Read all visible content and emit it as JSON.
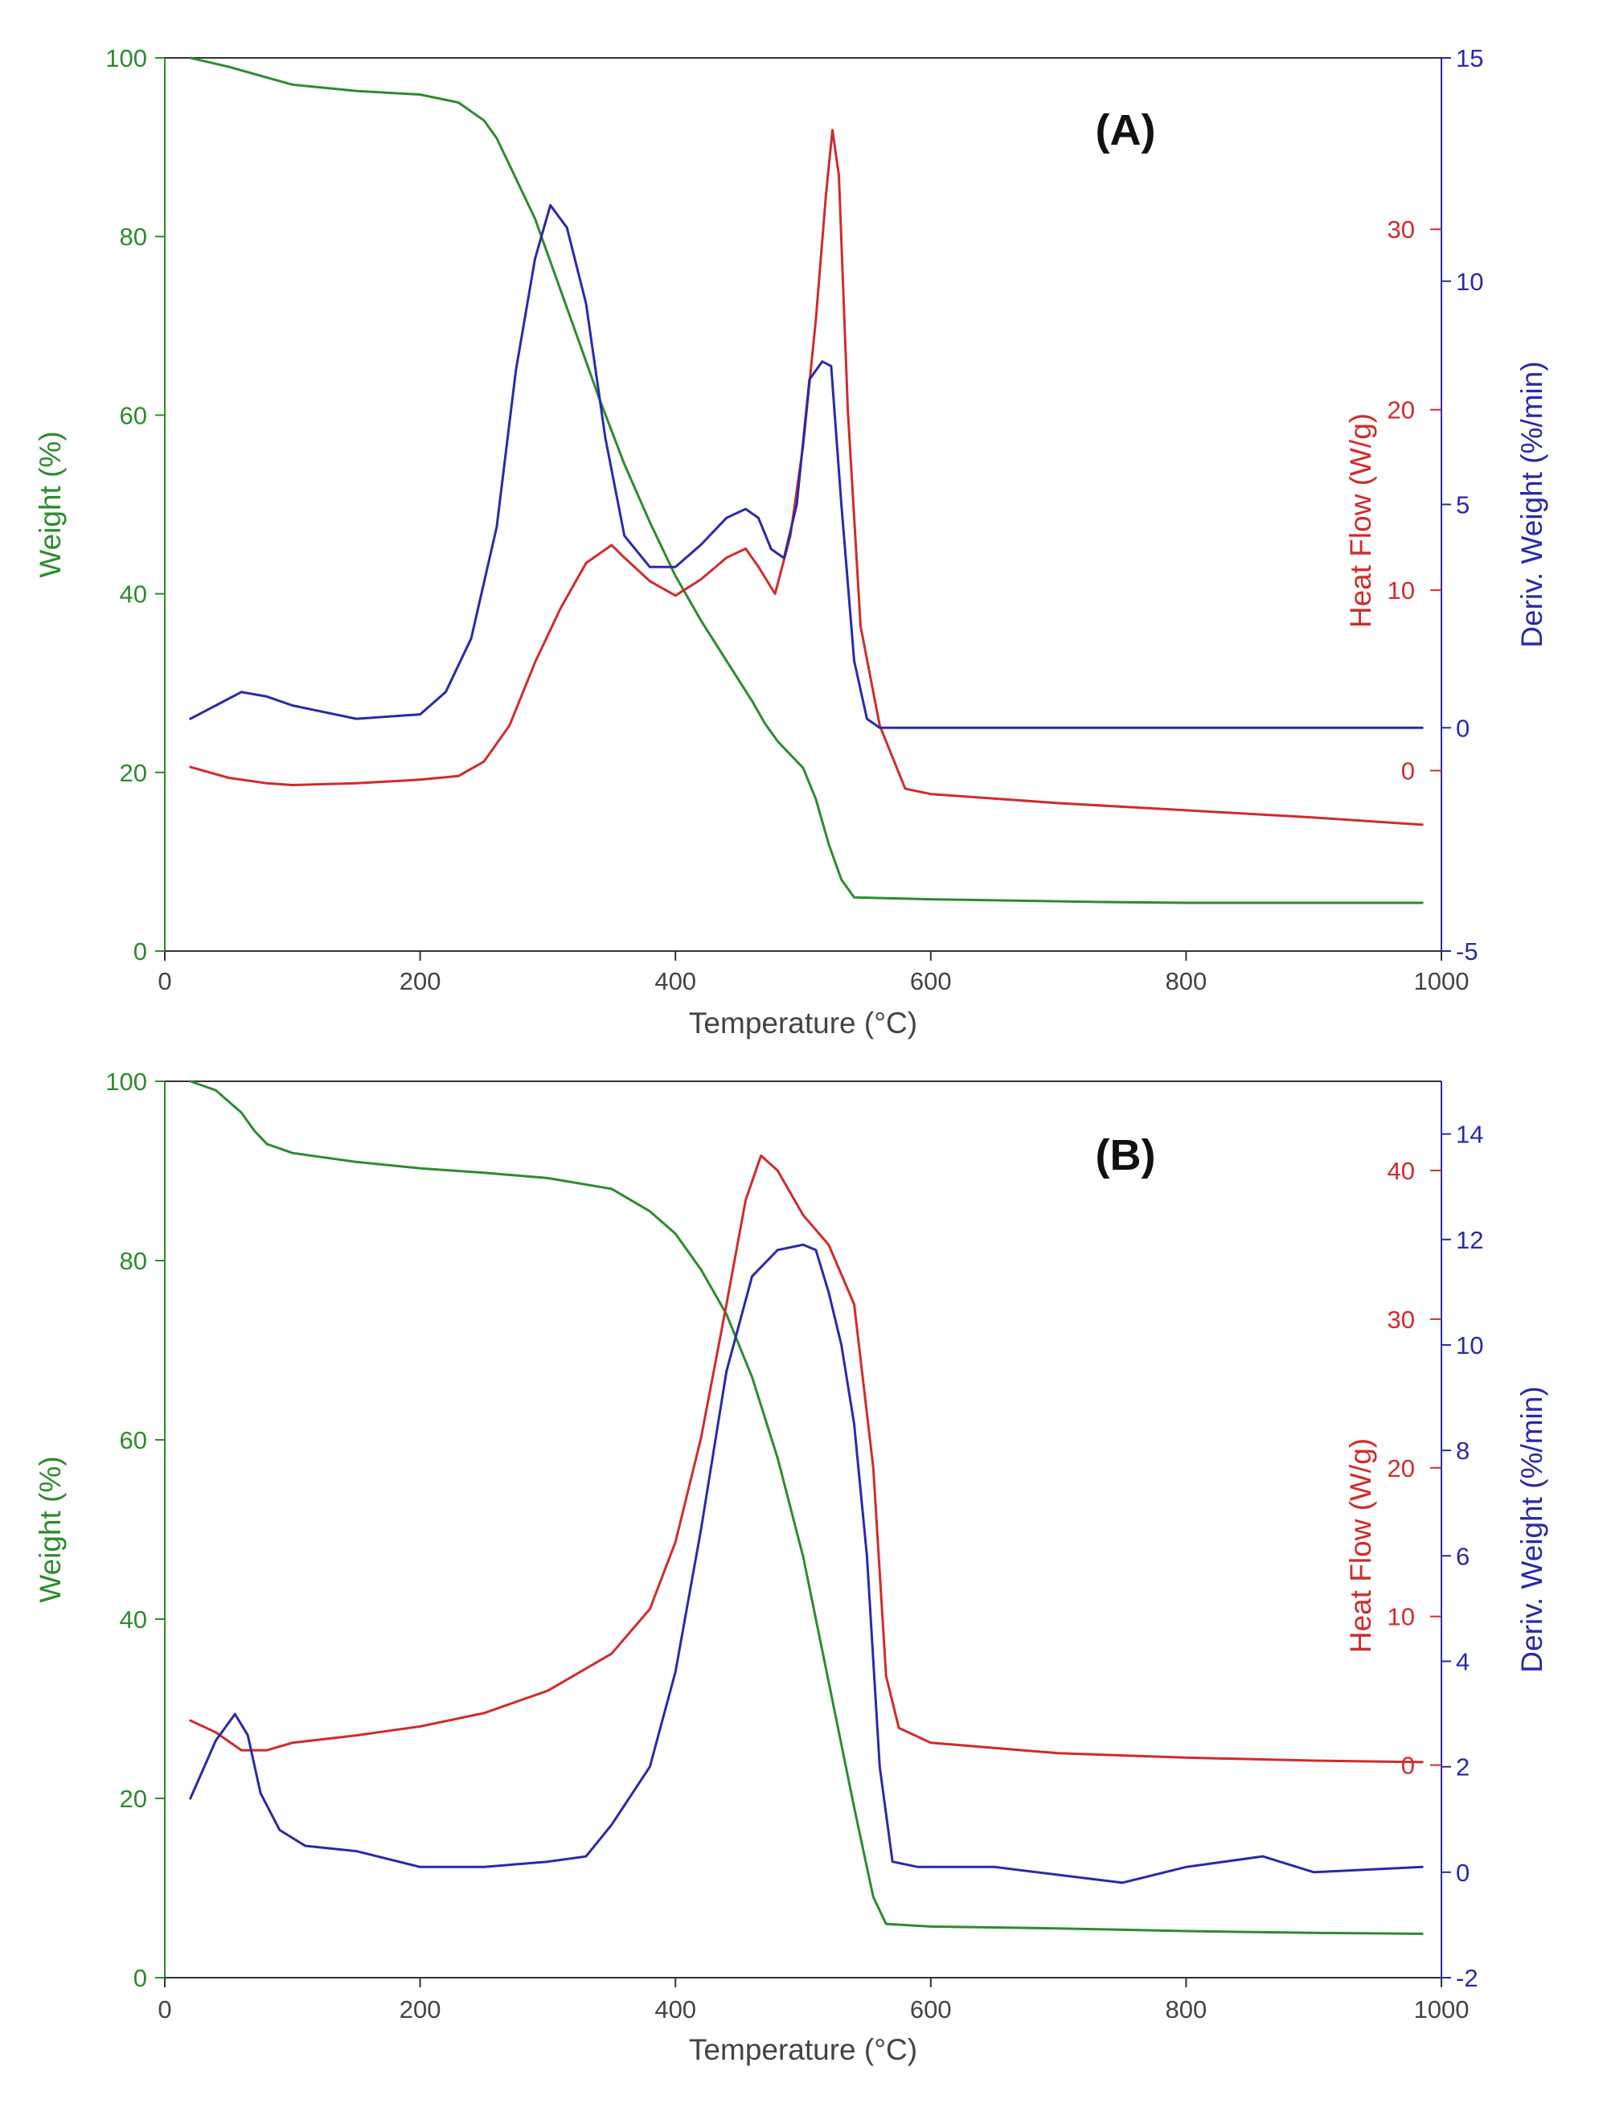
{
  "colors": {
    "weight": "#2e8b2e",
    "heat_flow": "#d12b2b",
    "deriv_weight": "#2a2aa8",
    "axis": "#333333"
  },
  "chart_data": [
    {
      "type": "line",
      "panel_label": "(A)",
      "xlabel": "Temperature (°C)",
      "xlim": [
        0,
        1000
      ],
      "xticks": [
        0,
        200,
        400,
        600,
        800,
        1000
      ],
      "axes": {
        "weight": {
          "label": "Weight (%)",
          "lim": [
            0,
            100
          ],
          "ticks": [
            0,
            20,
            40,
            60,
            80,
            100
          ],
          "side": "left",
          "color": "#2e8b2e"
        },
        "heat_flow": {
          "label": "Heat Flow (W/g)",
          "lim": [
            -10,
            39.5
          ],
          "ticks": [
            0,
            10,
            20,
            30
          ],
          "side": "right-inner",
          "color": "#d12b2b"
        },
        "deriv_weight": {
          "label": "Deriv. Weight (%/min)",
          "lim": [
            -5,
            15
          ],
          "ticks": [
            -5,
            0,
            5,
            10,
            15
          ],
          "side": "right",
          "color": "#2a2aa8"
        }
      },
      "series": [
        {
          "name": "Weight",
          "axis": "weight",
          "x": [
            20,
            50,
            80,
            100,
            150,
            200,
            230,
            250,
            260,
            270,
            280,
            290,
            300,
            320,
            340,
            360,
            380,
            400,
            420,
            440,
            460,
            470,
            480,
            490,
            500,
            510,
            520,
            530,
            540,
            600,
            730,
            800,
            900,
            985
          ],
          "y": [
            100,
            99,
            97.8,
            97,
            96.3,
            95.9,
            95,
            93,
            91,
            88,
            85,
            82,
            78,
            70,
            62,
            54.5,
            48,
            42,
            37,
            32.5,
            28,
            25.5,
            23.5,
            22,
            20.5,
            17,
            12,
            8,
            6,
            5.8,
            5.5,
            5.4,
            5.4,
            5.4
          ]
        },
        {
          "name": "Heat Flow",
          "axis": "heat_flow",
          "x": [
            20,
            50,
            80,
            100,
            150,
            200,
            230,
            250,
            270,
            290,
            310,
            330,
            350,
            360,
            380,
            400,
            420,
            440,
            455,
            465,
            478,
            490,
            500,
            510,
            518,
            523,
            528,
            535,
            545,
            560,
            580,
            600,
            700,
            800,
            900,
            985
          ],
          "y": [
            0.2,
            -0.4,
            -0.7,
            -0.8,
            -0.7,
            -0.5,
            -0.3,
            0.5,
            2.5,
            6,
            9,
            11.5,
            12.5,
            11.8,
            10.5,
            9.7,
            10.6,
            11.8,
            12.3,
            11.3,
            9.8,
            13,
            18,
            25,
            32,
            35.5,
            33,
            20,
            8,
            2.5,
            -1,
            -1.3,
            -1.8,
            -2.2,
            -2.6,
            -3
          ]
        },
        {
          "name": "Deriv. Weight",
          "axis": "deriv_weight",
          "x": [
            20,
            40,
            60,
            80,
            100,
            150,
            200,
            220,
            240,
            260,
            275,
            290,
            302,
            315,
            330,
            345,
            360,
            380,
            400,
            420,
            440,
            455,
            465,
            475,
            485,
            495,
            505,
            515,
            522,
            530,
            540,
            550,
            560,
            600,
            700,
            800,
            900,
            985
          ],
          "y": [
            0.2,
            0.5,
            0.8,
            0.7,
            0.5,
            0.2,
            0.3,
            0.8,
            2,
            4.5,
            8,
            10.5,
            11.7,
            11.2,
            9.5,
            6.5,
            4.3,
            3.6,
            3.6,
            4.1,
            4.7,
            4.9,
            4.7,
            4,
            3.8,
            5,
            7.8,
            8.2,
            8.1,
            5,
            1.5,
            0.2,
            0,
            0,
            0,
            0,
            0,
            0
          ]
        }
      ]
    },
    {
      "type": "line",
      "panel_label": "(B)",
      "xlabel": "Temperature (°C)",
      "xlim": [
        0,
        1000
      ],
      "xticks": [
        0,
        200,
        400,
        600,
        800,
        1000
      ],
      "axes": {
        "weight": {
          "label": "Weight (%)",
          "lim": [
            0,
            100
          ],
          "ticks": [
            0,
            20,
            40,
            60,
            80,
            100
          ],
          "side": "left",
          "color": "#2e8b2e"
        },
        "heat_flow": {
          "label": "Heat Flow (W/g)",
          "lim": [
            -14.3,
            46
          ],
          "ticks": [
            0,
            10,
            20,
            30,
            40
          ],
          "side": "right-inner",
          "color": "#d12b2b"
        },
        "deriv_weight": {
          "label": "Deriv. Weight (%/min)",
          "lim": [
            -2,
            15
          ],
          "ticks": [
            -2,
            0,
            2,
            4,
            6,
            8,
            10,
            12,
            14
          ],
          "side": "right",
          "color": "#2a2aa8"
        }
      },
      "series": [
        {
          "name": "Weight",
          "axis": "weight",
          "x": [
            20,
            40,
            60,
            70,
            80,
            100,
            150,
            200,
            250,
            300,
            350,
            380,
            400,
            420,
            440,
            460,
            480,
            500,
            520,
            540,
            555,
            565,
            600,
            700,
            800,
            900,
            985
          ],
          "y": [
            100,
            99,
            96.5,
            94.5,
            93,
            92,
            91,
            90.3,
            89.8,
            89.2,
            88,
            85.5,
            83,
            79,
            74,
            67,
            58,
            47,
            33,
            19,
            9,
            6,
            5.7,
            5.5,
            5.2,
            5,
            4.9
          ]
        },
        {
          "name": "Heat Flow",
          "axis": "heat_flow",
          "x": [
            20,
            40,
            60,
            80,
            100,
            150,
            200,
            250,
            300,
            350,
            380,
            400,
            420,
            440,
            455,
            467,
            480,
            500,
            520,
            540,
            555,
            565,
            575,
            600,
            700,
            800,
            900,
            985
          ],
          "y": [
            3,
            2.2,
            1,
            1,
            1.5,
            2,
            2.6,
            3.5,
            5,
            7.5,
            10.5,
            15,
            22,
            31,
            38,
            41,
            40,
            37,
            35,
            31,
            20,
            6,
            2.5,
            1.5,
            0.8,
            0.5,
            0.3,
            0.2
          ]
        },
        {
          "name": "Deriv. Weight",
          "axis": "deriv_weight",
          "x": [
            20,
            40,
            55,
            65,
            75,
            90,
            110,
            150,
            200,
            250,
            300,
            330,
            350,
            380,
            400,
            420,
            440,
            460,
            480,
            500,
            510,
            520,
            530,
            540,
            550,
            560,
            570,
            590,
            650,
            750,
            800,
            860,
            900,
            985
          ],
          "y": [
            1.4,
            2.5,
            3,
            2.6,
            1.5,
            0.8,
            0.5,
            0.4,
            0.1,
            0.1,
            0.2,
            0.3,
            0.9,
            2,
            3.8,
            6.5,
            9.5,
            11.3,
            11.8,
            11.9,
            11.8,
            11,
            10,
            8.5,
            6,
            2,
            0.2,
            0.1,
            0.1,
            -0.2,
            0.1,
            0.3,
            0,
            0.1
          ]
        }
      ]
    }
  ]
}
